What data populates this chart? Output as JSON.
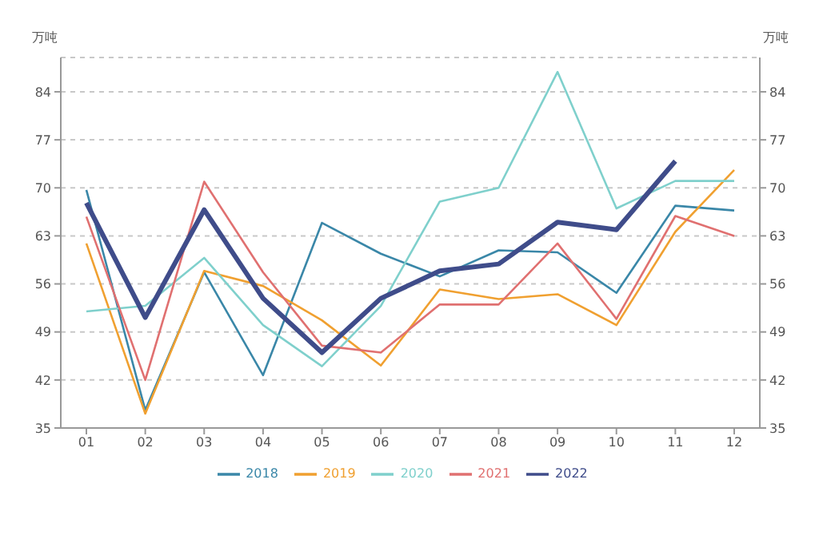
{
  "chart_data": {
    "type": "line",
    "ylabel": "万吨",
    "y2label": "万吨",
    "categories": [
      "01",
      "02",
      "03",
      "04",
      "05",
      "06",
      "07",
      "08",
      "09",
      "10",
      "11",
      "12"
    ],
    "series": [
      {
        "name": "2018",
        "color": "#3a87a8",
        "values": [
          69.7,
          37.6,
          57.7,
          42.7,
          64.9,
          60.4,
          57.1,
          60.9,
          60.6,
          54.7,
          67.4,
          66.7
        ]
      },
      {
        "name": "2019",
        "color": "#f0a030",
        "values": [
          61.9,
          37.1,
          57.9,
          55.7,
          50.7,
          44.1,
          55.2,
          53.8,
          54.5,
          50.0,
          63.6,
          72.6
        ]
      },
      {
        "name": "2020",
        "color": "#7fd0cc",
        "values": [
          52,
          52.8,
          59.8,
          50,
          44,
          52.8,
          68,
          70,
          86.9,
          67,
          71,
          71
        ]
      },
      {
        "name": "2021",
        "color": "#e07070",
        "values": [
          65.8,
          42,
          70.9,
          57.7,
          47,
          46,
          53,
          53,
          61.9,
          50.9,
          65.9,
          63
        ]
      },
      {
        "name": "2022",
        "color": "#3f4c8a",
        "values": [
          67.8,
          51.1,
          66.8,
          53.9,
          46,
          53.9,
          57.9,
          58.9,
          65,
          63.9,
          73.9,
          null
        ]
      }
    ],
    "ylim": [
      35,
      89
    ],
    "yticks": [
      35,
      42,
      49,
      56,
      63,
      70,
      77,
      84
    ],
    "y2lim": [
      35,
      89
    ],
    "y2ticks": [
      35,
      42,
      49,
      56,
      63,
      70,
      77,
      84
    ],
    "grid": "y",
    "legend": "bottom",
    "marker": "none",
    "line_style": "solid"
  }
}
